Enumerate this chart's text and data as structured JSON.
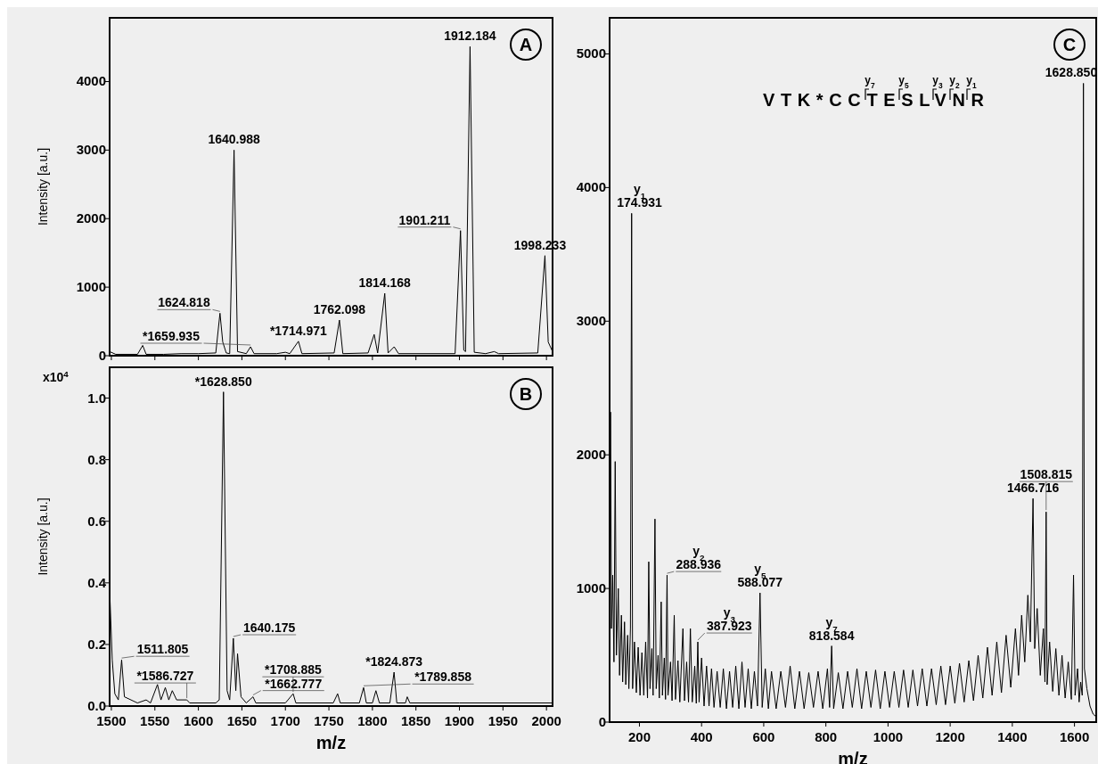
{
  "chart_data": [
    {
      "type": "line",
      "ylabel": "Intensity [a.u.]",
      "color": "#000000",
      "xlim": [
        1498,
        2007
      ],
      "xticks": [
        1500,
        1550,
        1600,
        1650,
        1700,
        1750,
        1800,
        1850,
        1900,
        1950,
        2000
      ],
      "ylim": [
        0,
        4930
      ],
      "yticks": [
        0,
        1000,
        2000,
        3000,
        4000
      ],
      "tick_labels": "y",
      "x": [
        1498,
        1505,
        1530,
        1536,
        1540,
        1560,
        1580,
        1600,
        1620,
        1624.818,
        1628,
        1632,
        1636,
        1640.988,
        1645,
        1655,
        1659.935,
        1664,
        1690,
        1700,
        1705,
        1714.971,
        1719,
        1756,
        1762.098,
        1766,
        1795,
        1802,
        1806,
        1814.168,
        1818,
        1825,
        1830,
        1895,
        1901.211,
        1905,
        1907,
        1912.184,
        1917,
        1930,
        1940,
        1945,
        1990,
        1998.233,
        2002,
        2007
      ],
      "values": [
        60,
        20,
        20,
        150,
        20,
        20,
        30,
        30,
        40,
        620,
        200,
        40,
        30,
        3000,
        60,
        30,
        130,
        30,
        30,
        50,
        30,
        210,
        30,
        40,
        520,
        30,
        40,
        310,
        40,
        910,
        40,
        130,
        30,
        30,
        1825,
        80,
        60,
        4510,
        50,
        30,
        60,
        30,
        40,
        1460,
        200,
        60
      ],
      "annotations": [
        "A",
        {
          "text": "1624.818",
          "x": 1624.818,
          "y": 620
        },
        {
          "text": "1640.988",
          "x": 1640.988,
          "y": 3000
        },
        {
          "text": "*1659.935",
          "x": 1659.935,
          "y": 130
        },
        {
          "text": "*1714.971",
          "x": 1714.971,
          "y": 210
        },
        {
          "text": "1762.098",
          "x": 1762.098,
          "y": 520
        },
        {
          "text": "1814.168",
          "x": 1814.168,
          "y": 910
        },
        {
          "text": "1901.211",
          "x": 1901.211,
          "y": 1825
        },
        {
          "text": "1912.184",
          "x": 1912.184,
          "y": 4510
        },
        {
          "text": "1998.233",
          "x": 1998.233,
          "y": 1460
        }
      ]
    },
    {
      "type": "line",
      "xlabel": "m/z",
      "ylabel": "Intensity [a.u.]",
      "color": "#000000",
      "xlim": [
        1498,
        2007
      ],
      "xticks": [
        1500,
        1550,
        1600,
        1650,
        1700,
        1750,
        1800,
        1850,
        1900,
        1950,
        2000
      ],
      "ylim": [
        0,
        1.1
      ],
      "yticks": [
        {
          "value": 0,
          "label": "0.0"
        },
        {
          "value": 0.2,
          "label": "0.2"
        },
        {
          "value": 0.4,
          "label": "0.4"
        },
        {
          "value": 0.6,
          "label": "0.6"
        },
        {
          "value": 0.8,
          "label": "0.8"
        },
        {
          "value": 1,
          "label": "1.0"
        }
      ],
      "x": [
        1498,
        1501,
        1504,
        1508,
        1511.805,
        1515,
        1530,
        1540,
        1545,
        1553,
        1557,
        1562,
        1566,
        1570,
        1575,
        1586.727,
        1590,
        1620,
        1624,
        1628.85,
        1633,
        1636,
        1640.175,
        1643,
        1645,
        1649,
        1655,
        1662.777,
        1666,
        1700,
        1708.885,
        1712,
        1755,
        1760,
        1763,
        1785,
        1789.858,
        1793,
        1800,
        1804,
        1808,
        1820,
        1824.873,
        1828,
        1838,
        1840,
        1843,
        1900,
        2007
      ],
      "values": [
        0.38,
        0.15,
        0.04,
        0.02,
        0.15,
        0.03,
        0.01,
        0.02,
        0.01,
        0.07,
        0.02,
        0.06,
        0.02,
        0.05,
        0.02,
        0.02,
        0.01,
        0.01,
        0.02,
        1.02,
        0.05,
        0.02,
        0.22,
        0.05,
        0.17,
        0.03,
        0.01,
        0.03,
        0.01,
        0.01,
        0.04,
        0.01,
        0.01,
        0.04,
        0.01,
        0.01,
        0.06,
        0.01,
        0.01,
        0.05,
        0.01,
        0.01,
        0.11,
        0.01,
        0.01,
        0.03,
        0.01,
        0.01,
        0.01
      ],
      "annotations": [
        "B",
        "x10$^{4}$",
        {
          "text": "1511.805",
          "x": 1511.805,
          "y": 0.15
        },
        {
          "text": "*1586.727",
          "x": 1586.727,
          "y": 0.02
        },
        {
          "text": "*1628.850",
          "x": 1628.85,
          "y": 1.02
        },
        {
          "text": "1640.175",
          "x": 1640.175,
          "y": 0.22
        },
        {
          "text": "*1662.777",
          "x": 1662.777,
          "y": 0.03
        },
        {
          "text": "*1708.885",
          "x": 1708.885,
          "y": 0.04
        },
        {
          "text": "*1789.858",
          "x": 1789.858,
          "y": 0.06
        },
        {
          "text": "*1824.873",
          "x": 1824.873,
          "y": 0.11
        }
      ]
    },
    {
      "type": "line",
      "xlabel": "m/z",
      "color": "#000000",
      "xlim": [
        104,
        1670
      ],
      "xticks": [
        200,
        400,
        600,
        800,
        1000,
        1200,
        1400,
        1600
      ],
      "ylim": [
        0,
        5270
      ],
      "yticks": [
        0,
        1000,
        2000,
        3000,
        4000,
        5000
      ],
      "x": [
        104,
        107,
        110,
        114,
        118,
        122,
        126,
        132,
        136,
        142,
        146,
        152,
        156,
        162,
        166,
        171,
        174.931,
        178,
        184,
        190,
        196,
        202,
        208,
        214,
        220,
        226,
        230,
        234,
        240,
        244,
        250,
        254,
        260,
        264,
        270,
        274,
        280,
        284,
        288.936,
        292,
        300,
        305,
        312,
        316,
        324,
        330,
        340,
        345,
        352,
        358,
        364,
        370,
        378,
        383,
        387.923,
        392,
        400,
        408,
        416,
        424,
        432,
        440,
        450,
        460,
        470,
        480,
        490,
        500,
        510,
        520,
        530,
        540,
        550,
        560,
        570,
        580,
        588.077,
        595,
        605,
        615,
        625,
        640,
        655,
        670,
        685,
        700,
        715,
        730,
        745,
        760,
        775,
        790,
        805,
        812,
        818.584,
        825,
        840,
        855,
        870,
        885,
        900,
        915,
        930,
        945,
        960,
        975,
        990,
        1005,
        1020,
        1035,
        1050,
        1065,
        1080,
        1095,
        1110,
        1125,
        1140,
        1155,
        1170,
        1185,
        1200,
        1215,
        1230,
        1245,
        1260,
        1275,
        1290,
        1305,
        1320,
        1335,
        1350,
        1365,
        1380,
        1395,
        1410,
        1420,
        1430,
        1440,
        1450,
        1458,
        1466.716,
        1472,
        1480,
        1490,
        1500,
        1505,
        1508.815,
        1512,
        1520,
        1530,
        1540,
        1550,
        1560,
        1570,
        1580,
        1590,
        1597,
        1602,
        1610,
        1615,
        1620,
        1625,
        1628.85,
        1632,
        1640,
        1650,
        1660,
        1670
      ],
      "values": [
        300,
        2320,
        700,
        1100,
        450,
        1950,
        500,
        1000,
        350,
        800,
        300,
        750,
        280,
        650,
        250,
        700,
        3807,
        250,
        600,
        220,
        560,
        200,
        520,
        200,
        600,
        180,
        1200,
        250,
        550,
        200,
        1520,
        250,
        500,
        180,
        900,
        200,
        480,
        170,
        1100,
        200,
        450,
        160,
        800,
        170,
        460,
        150,
        700,
        160,
        450,
        150,
        700,
        150,
        420,
        140,
        600,
        150,
        480,
        120,
        420,
        120,
        400,
        110,
        380,
        110,
        400,
        100,
        380,
        110,
        420,
        100,
        450,
        110,
        400,
        100,
        380,
        120,
        967,
        110,
        400,
        100,
        380,
        100,
        380,
        110,
        420,
        100,
        380,
        100,
        370,
        110,
        380,
        100,
        400,
        110,
        570,
        100,
        370,
        100,
        380,
        110,
        400,
        100,
        380,
        110,
        390,
        100,
        380,
        110,
        380,
        110,
        390,
        110,
        390,
        120,
        400,
        120,
        400,
        130,
        420,
        130,
        420,
        140,
        440,
        150,
        460,
        160,
        500,
        180,
        560,
        200,
        600,
        220,
        650,
        260,
        700,
        350,
        800,
        450,
        950,
        600,
        1673,
        550,
        850,
        350,
        700,
        300,
        1573,
        280,
        600,
        230,
        550,
        200,
        500,
        180,
        450,
        170,
        1100,
        200,
        400,
        150,
        300,
        200,
        4780,
        400,
        250,
        120,
        60,
        40
      ],
      "annotations": [
        "C",
        "VTK*CCTESLVNR",
        "y$_{7}$",
        "y$_{5}$",
        "y$_{3}$",
        "y$_{2}$",
        "y$_{1}$",
        {
          "text": "y$_{1}$\n174.931",
          "x": 174.931,
          "y": 3807
        },
        {
          "text": "y$_{2}$\n288.936",
          "x": 288.936,
          "y": 1100
        },
        {
          "text": "y$_{3}$\n387.923",
          "x": 387.923,
          "y": 600
        },
        {
          "text": "y$_{5}$\n588.077",
          "x": 588.077,
          "y": 967
        },
        {
          "text": "y$_{7}$\n818.584",
          "x": 818.584,
          "y": 570
        },
        {
          "text": "1466.716",
          "x": 1466.716,
          "y": 1673
        },
        {
          "text": "1508.815",
          "x": 1508.815,
          "y": 1573
        },
        {
          "text": "1628.850",
          "x": 1628.85,
          "y": 4780
        }
      ]
    }
  ]
}
